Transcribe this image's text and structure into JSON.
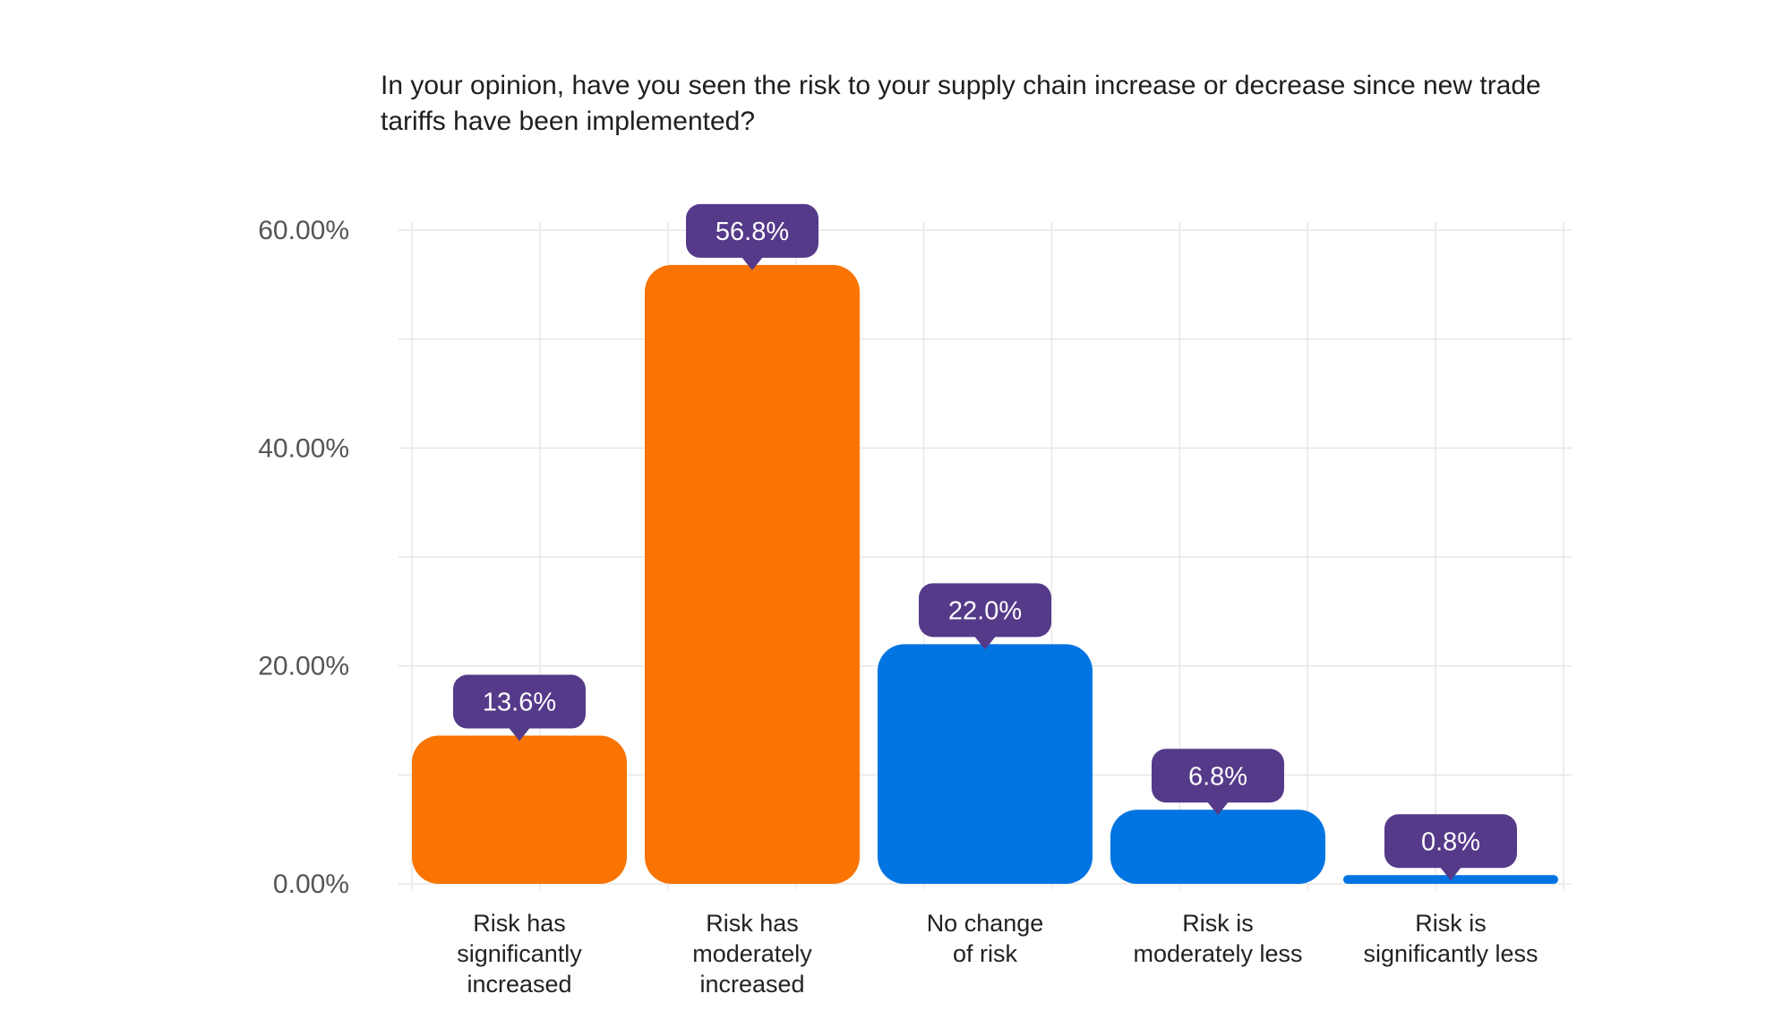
{
  "chart_data": {
    "type": "bar",
    "title": "In your opinion, have you seen the risk to your supply chain increase or decrease since new trade tariffs have been implemented?",
    "categories": [
      [
        "Risk has",
        "significantly",
        "increased"
      ],
      [
        "Risk has",
        "moderately",
        "increased"
      ],
      [
        "No change",
        "of risk"
      ],
      [
        "Risk is",
        "moderately less"
      ],
      [
        "Risk is",
        "significantly less"
      ]
    ],
    "values": [
      13.6,
      56.8,
      22.0,
      6.8,
      0.8
    ],
    "data_labels": [
      "13.6%",
      "56.8%",
      "22.0%",
      "6.8%",
      "0.8%"
    ],
    "bar_colors": [
      "#F97402",
      "#F97402",
      "#0074E1",
      "#0074E1",
      "#0074E1"
    ],
    "label_bubble_color": "#553A8A",
    "ylim": [
      0,
      60
    ],
    "y_ticks": [
      {
        "value": 0,
        "label": "0.00%"
      },
      {
        "value": 20,
        "label": "20.00%"
      },
      {
        "value": 40,
        "label": "40.00%"
      },
      {
        "value": 60,
        "label": "60.00%"
      }
    ],
    "y_gridlines": [
      0,
      10,
      20,
      30,
      40,
      50,
      60
    ],
    "grid": true,
    "legend": "none"
  }
}
